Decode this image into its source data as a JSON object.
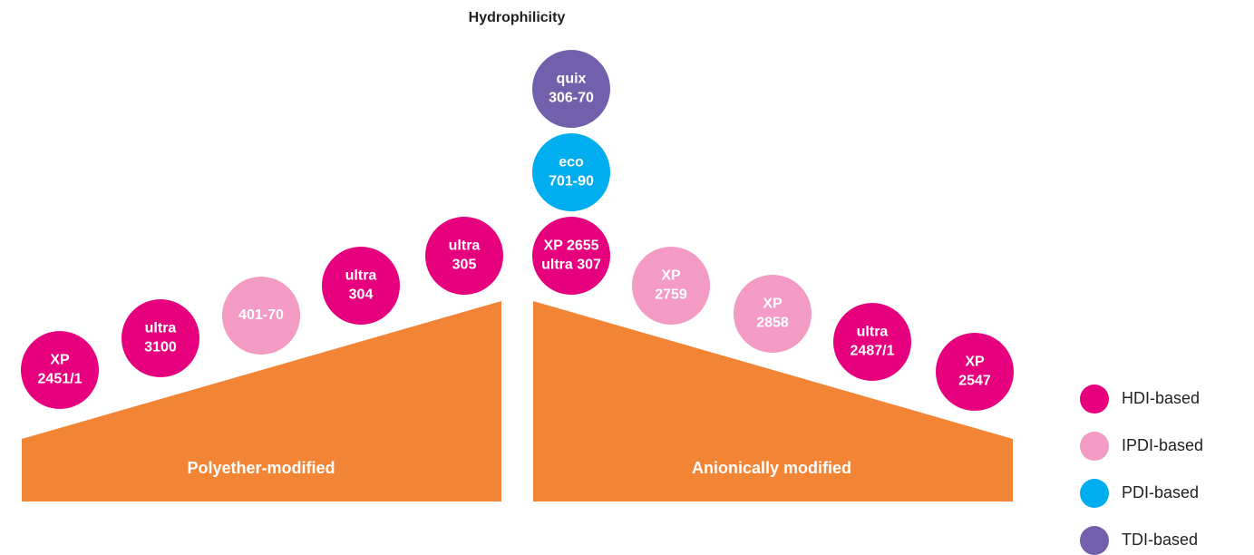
{
  "title": "Hydrophilicity",
  "bases": [
    {
      "label": "Polyether-modified"
    },
    {
      "label": "Anionically modified"
    }
  ],
  "base_color": "#f28436",
  "nodes": [
    {
      "lines": [
        "XP",
        "2451/1"
      ],
      "color": "#e6007e"
    },
    {
      "lines": [
        "ultra",
        "3100"
      ],
      "color": "#e6007e"
    },
    {
      "lines": [
        "401-70"
      ],
      "color": "#f39ac5"
    },
    {
      "lines": [
        "ultra",
        "304"
      ],
      "color": "#e6007e"
    },
    {
      "lines": [
        "ultra",
        "305"
      ],
      "color": "#e6007e"
    },
    {
      "lines": [
        "quix",
        "306-70"
      ],
      "color": "#7360ad"
    },
    {
      "lines": [
        "eco",
        "701-90"
      ],
      "color": "#00aeef"
    },
    {
      "lines": [
        "XP 2655",
        "ultra 307"
      ],
      "color": "#e6007e"
    },
    {
      "lines": [
        "XP",
        "2759"
      ],
      "color": "#f39ac5"
    },
    {
      "lines": [
        "XP",
        "2858"
      ],
      "color": "#f39ac5"
    },
    {
      "lines": [
        "ultra",
        "2487/1"
      ],
      "color": "#e6007e"
    },
    {
      "lines": [
        "XP",
        "2547"
      ],
      "color": "#e6007e"
    }
  ],
  "legend": [
    {
      "label": "HDI-based",
      "color": "#e6007e"
    },
    {
      "label": "IPDI-based",
      "color": "#f39ac5"
    },
    {
      "label": "PDI-based",
      "color": "#00aeef"
    },
    {
      "label": "TDI-based",
      "color": "#7360ad"
    }
  ]
}
